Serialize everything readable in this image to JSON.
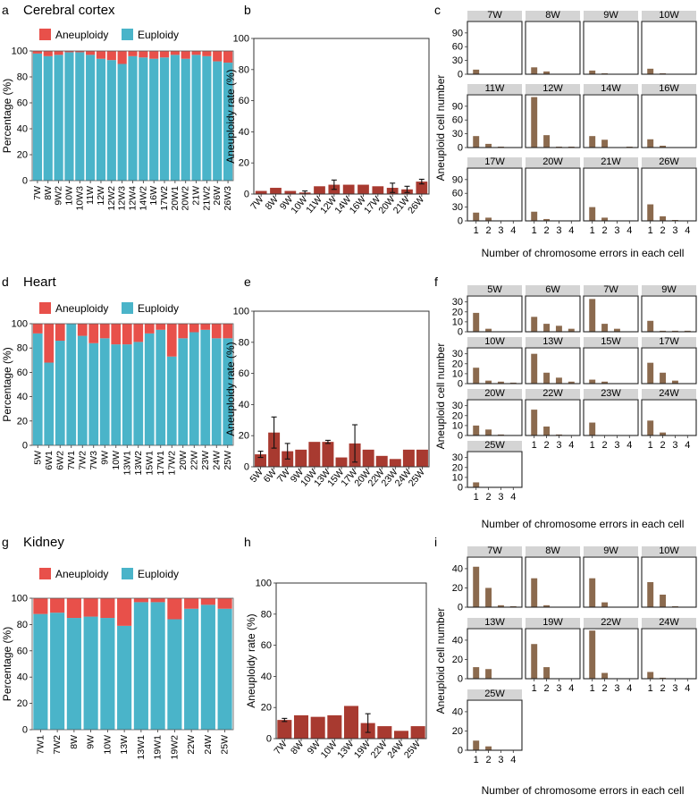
{
  "colors": {
    "euploidy": "#4ab4c9",
    "aneuploidy": "#e8504a",
    "rate_bar": "#a83a30",
    "error_bar": "#8b6a4e",
    "strip": "#d4d4d4"
  },
  "chart_data": [
    {
      "panel": "a",
      "type": "bar",
      "stacked": true,
      "title": "Cerebral cortex",
      "ylabel": "Percentage (%)",
      "legend": [
        "Aneuploidy",
        "Euploidy"
      ],
      "ylim": [
        0,
        100
      ],
      "yticks": [
        "0",
        "20",
        "40",
        "60",
        "80",
        "100"
      ],
      "categories": [
        "7W",
        "8W",
        "9W2",
        "10W",
        "10W3",
        "11W",
        "12W",
        "12W2",
        "12W3",
        "12W4",
        "14W2",
        "16W",
        "17W2",
        "20W1",
        "20W2",
        "21W",
        "21W2",
        "26W",
        "26W3"
      ],
      "series": [
        {
          "name": "Euploidy",
          "values": [
            98,
            96,
            97,
            99,
            99,
            97,
            94,
            93,
            90,
            96,
            95,
            94,
            95,
            97,
            94,
            97,
            96,
            92,
            91
          ]
        },
        {
          "name": "Aneuploidy",
          "values": [
            2,
            4,
            3,
            1,
            1,
            3,
            6,
            7,
            10,
            4,
            5,
            6,
            5,
            3,
            6,
            3,
            4,
            8,
            9
          ]
        }
      ]
    },
    {
      "panel": "b",
      "type": "bar",
      "ylabel": "Aneuploidy rate (%)",
      "ylim": [
        0,
        100
      ],
      "yticks": [
        "0",
        "20",
        "40",
        "60",
        "80",
        "100"
      ],
      "categories": [
        "7W",
        "8W",
        "9W",
        "10W",
        "11W",
        "12W",
        "14W",
        "16W",
        "17W",
        "20W",
        "21W",
        "26W"
      ],
      "values": [
        2,
        4,
        2,
        1,
        5,
        6,
        6,
        6,
        5,
        4,
        3,
        8
      ],
      "errors": [
        0,
        0,
        0,
        1,
        0,
        3,
        0,
        0,
        0,
        3,
        2,
        1.5
      ]
    },
    {
      "panel": "c",
      "type": "bar",
      "faceted": true,
      "ylabel": "Aneuploid cell number",
      "xlabel": "Number of chromosome errors in each cell",
      "ylim": [
        0,
        115
      ],
      "yticks": [
        "0",
        "30",
        "60",
        "90"
      ],
      "tickvals": [
        0,
        30,
        60,
        90
      ],
      "categories": [
        "1",
        "2",
        "3",
        "4"
      ],
      "facets": [
        {
          "label": "7W",
          "values": [
            10,
            0,
            0,
            0
          ]
        },
        {
          "label": "8W",
          "values": [
            15,
            6,
            0,
            0
          ]
        },
        {
          "label": "9W",
          "values": [
            8,
            1,
            0,
            0
          ]
        },
        {
          "label": "10W",
          "values": [
            12,
            2,
            0,
            0
          ]
        },
        {
          "label": "11W",
          "values": [
            25,
            8,
            2,
            0
          ]
        },
        {
          "label": "12W",
          "values": [
            110,
            27,
            2,
            2
          ]
        },
        {
          "label": "14W",
          "values": [
            25,
            17,
            0,
            1
          ]
        },
        {
          "label": "16W",
          "values": [
            18,
            4,
            0,
            0
          ]
        },
        {
          "label": "17W",
          "values": [
            18,
            7,
            0,
            0
          ]
        },
        {
          "label": "20W",
          "values": [
            20,
            4,
            0,
            0
          ]
        },
        {
          "label": "21W",
          "values": [
            30,
            7,
            0,
            0
          ]
        },
        {
          "label": "26W",
          "values": [
            36,
            10,
            1,
            0
          ]
        }
      ]
    },
    {
      "panel": "d",
      "type": "bar",
      "stacked": true,
      "title": "Heart",
      "ylabel": "Percentage (%)",
      "legend": [
        "Aneuploidy",
        "Euploidy"
      ],
      "ylim": [
        0,
        100
      ],
      "yticks": [
        "0",
        "20",
        "40",
        "60",
        "80",
        "100"
      ],
      "categories": [
        "5W",
        "6W1",
        "6W2",
        "7W1",
        "7W2",
        "7W3",
        "9W",
        "10W",
        "13W1",
        "13W2",
        "15W1",
        "17W1",
        "17W2",
        "20W",
        "22W",
        "23W",
        "24W",
        "25W"
      ],
      "series": [
        {
          "name": "Euploidy",
          "values": [
            92,
            68,
            86,
            100,
            90,
            84,
            88,
            83,
            83,
            85,
            92,
            95,
            73,
            88,
            93,
            95,
            88,
            88
          ]
        },
        {
          "name": "Aneuploidy",
          "values": [
            8,
            32,
            14,
            0,
            10,
            16,
            12,
            17,
            17,
            15,
            8,
            5,
            27,
            12,
            7,
            5,
            12,
            12
          ]
        }
      ]
    },
    {
      "panel": "e",
      "type": "bar",
      "ylabel": "Aneuploidy rate (%)",
      "ylim": [
        0,
        100
      ],
      "yticks": [
        "0",
        "20",
        "40",
        "60",
        "80",
        "100"
      ],
      "categories": [
        "5W",
        "6W",
        "7W",
        "9W",
        "10W",
        "13W",
        "15W",
        "17W",
        "20W",
        "22W",
        "23W",
        "24W",
        "25W"
      ],
      "values": [
        8,
        22,
        10,
        11,
        16,
        16,
        6,
        15,
        11,
        7,
        5,
        11,
        11
      ],
      "errors": [
        2,
        10,
        5,
        0,
        0,
        1,
        0,
        12,
        0,
        0,
        0,
        0,
        0
      ]
    },
    {
      "panel": "f",
      "type": "bar",
      "faceted": true,
      "ylabel": "Aneuploid cell number",
      "xlabel": "Number of chromosome errors in each cell",
      "ylim": [
        0,
        36
      ],
      "yticks": [
        "0",
        "10",
        "20",
        "30"
      ],
      "tickvals": [
        0,
        10,
        20,
        30
      ],
      "categories": [
        "1",
        "2",
        "3",
        "4"
      ],
      "facets": [
        {
          "label": "5W",
          "values": [
            19,
            3,
            0,
            0
          ]
        },
        {
          "label": "6W",
          "values": [
            15,
            8,
            6,
            3
          ]
        },
        {
          "label": "7W",
          "values": [
            33,
            8,
            3,
            0
          ]
        },
        {
          "label": "9W",
          "values": [
            11,
            1,
            1,
            1
          ]
        },
        {
          "label": "10W",
          "values": [
            16,
            3,
            2,
            1
          ]
        },
        {
          "label": "13W",
          "values": [
            30,
            11,
            6,
            2
          ]
        },
        {
          "label": "15W",
          "values": [
            4,
            2,
            0,
            0
          ]
        },
        {
          "label": "17W",
          "values": [
            21,
            11,
            3,
            0
          ]
        },
        {
          "label": "20W",
          "values": [
            10,
            6,
            1,
            0
          ]
        },
        {
          "label": "22W",
          "values": [
            26,
            9,
            1,
            0
          ]
        },
        {
          "label": "23W",
          "values": [
            13,
            0,
            0,
            0
          ]
        },
        {
          "label": "24W",
          "values": [
            15,
            3,
            0,
            0
          ]
        },
        {
          "label": "25W",
          "values": [
            5,
            0,
            0,
            0
          ]
        }
      ]
    },
    {
      "panel": "g",
      "type": "bar",
      "stacked": true,
      "title": "Kidney",
      "ylabel": "Percentage (%)",
      "legend": [
        "Aneuploidy",
        "Euploidy"
      ],
      "ylim": [
        0,
        100
      ],
      "yticks": [
        "0",
        "20",
        "40",
        "60",
        "80",
        "100"
      ],
      "categories": [
        "7W1",
        "7W2",
        "8W",
        "9W",
        "10W",
        "13W",
        "13W1",
        "19W1",
        "19W2",
        "22W",
        "24W",
        "25W"
      ],
      "series": [
        {
          "name": "Euploidy",
          "values": [
            88,
            89,
            85,
            86,
            85,
            79,
            97,
            97,
            84,
            92,
            95,
            92
          ]
        },
        {
          "name": "Aneuploidy",
          "values": [
            12,
            11,
            15,
            14,
            15,
            21,
            3,
            3,
            16,
            8,
            5,
            8
          ]
        }
      ]
    },
    {
      "panel": "h",
      "type": "bar",
      "ylabel": "Aneuploidy rate (%)",
      "ylim": [
        0,
        100
      ],
      "yticks": [
        "0",
        "20",
        "40",
        "60",
        "80",
        "100"
      ],
      "categories": [
        "7W",
        "8W",
        "9W",
        "10W",
        "13W",
        "19W",
        "22W",
        "24W",
        "25W"
      ],
      "values": [
        12,
        15,
        14,
        15,
        21,
        10,
        8,
        5,
        8
      ],
      "errors": [
        1,
        0,
        0,
        0,
        0,
        6,
        0,
        0,
        0
      ]
    },
    {
      "panel": "i",
      "type": "bar",
      "faceted": true,
      "ylabel": "Aneuploid cell number",
      "xlabel": "Number of chromosome errors in each cell",
      "ylim": [
        0,
        52
      ],
      "yticks": [
        "0",
        "20",
        "40"
      ],
      "tickvals": [
        0,
        20,
        40
      ],
      "categories": [
        "1",
        "2",
        "3",
        "4"
      ],
      "facets": [
        {
          "label": "7W",
          "values": [
            42,
            20,
            2,
            1
          ]
        },
        {
          "label": "8W",
          "values": [
            30,
            2,
            0,
            0
          ]
        },
        {
          "label": "9W",
          "values": [
            30,
            5,
            0,
            0
          ]
        },
        {
          "label": "10W",
          "values": [
            26,
            13,
            1,
            0
          ]
        },
        {
          "label": "13W",
          "values": [
            12,
            10,
            0,
            0
          ]
        },
        {
          "label": "19W",
          "values": [
            36,
            12,
            0,
            0
          ]
        },
        {
          "label": "22W",
          "values": [
            50,
            6,
            0,
            0
          ]
        },
        {
          "label": "24W",
          "values": [
            7,
            1,
            0,
            0
          ]
        },
        {
          "label": "25W",
          "values": [
            10,
            4,
            0,
            0
          ]
        }
      ]
    }
  ]
}
